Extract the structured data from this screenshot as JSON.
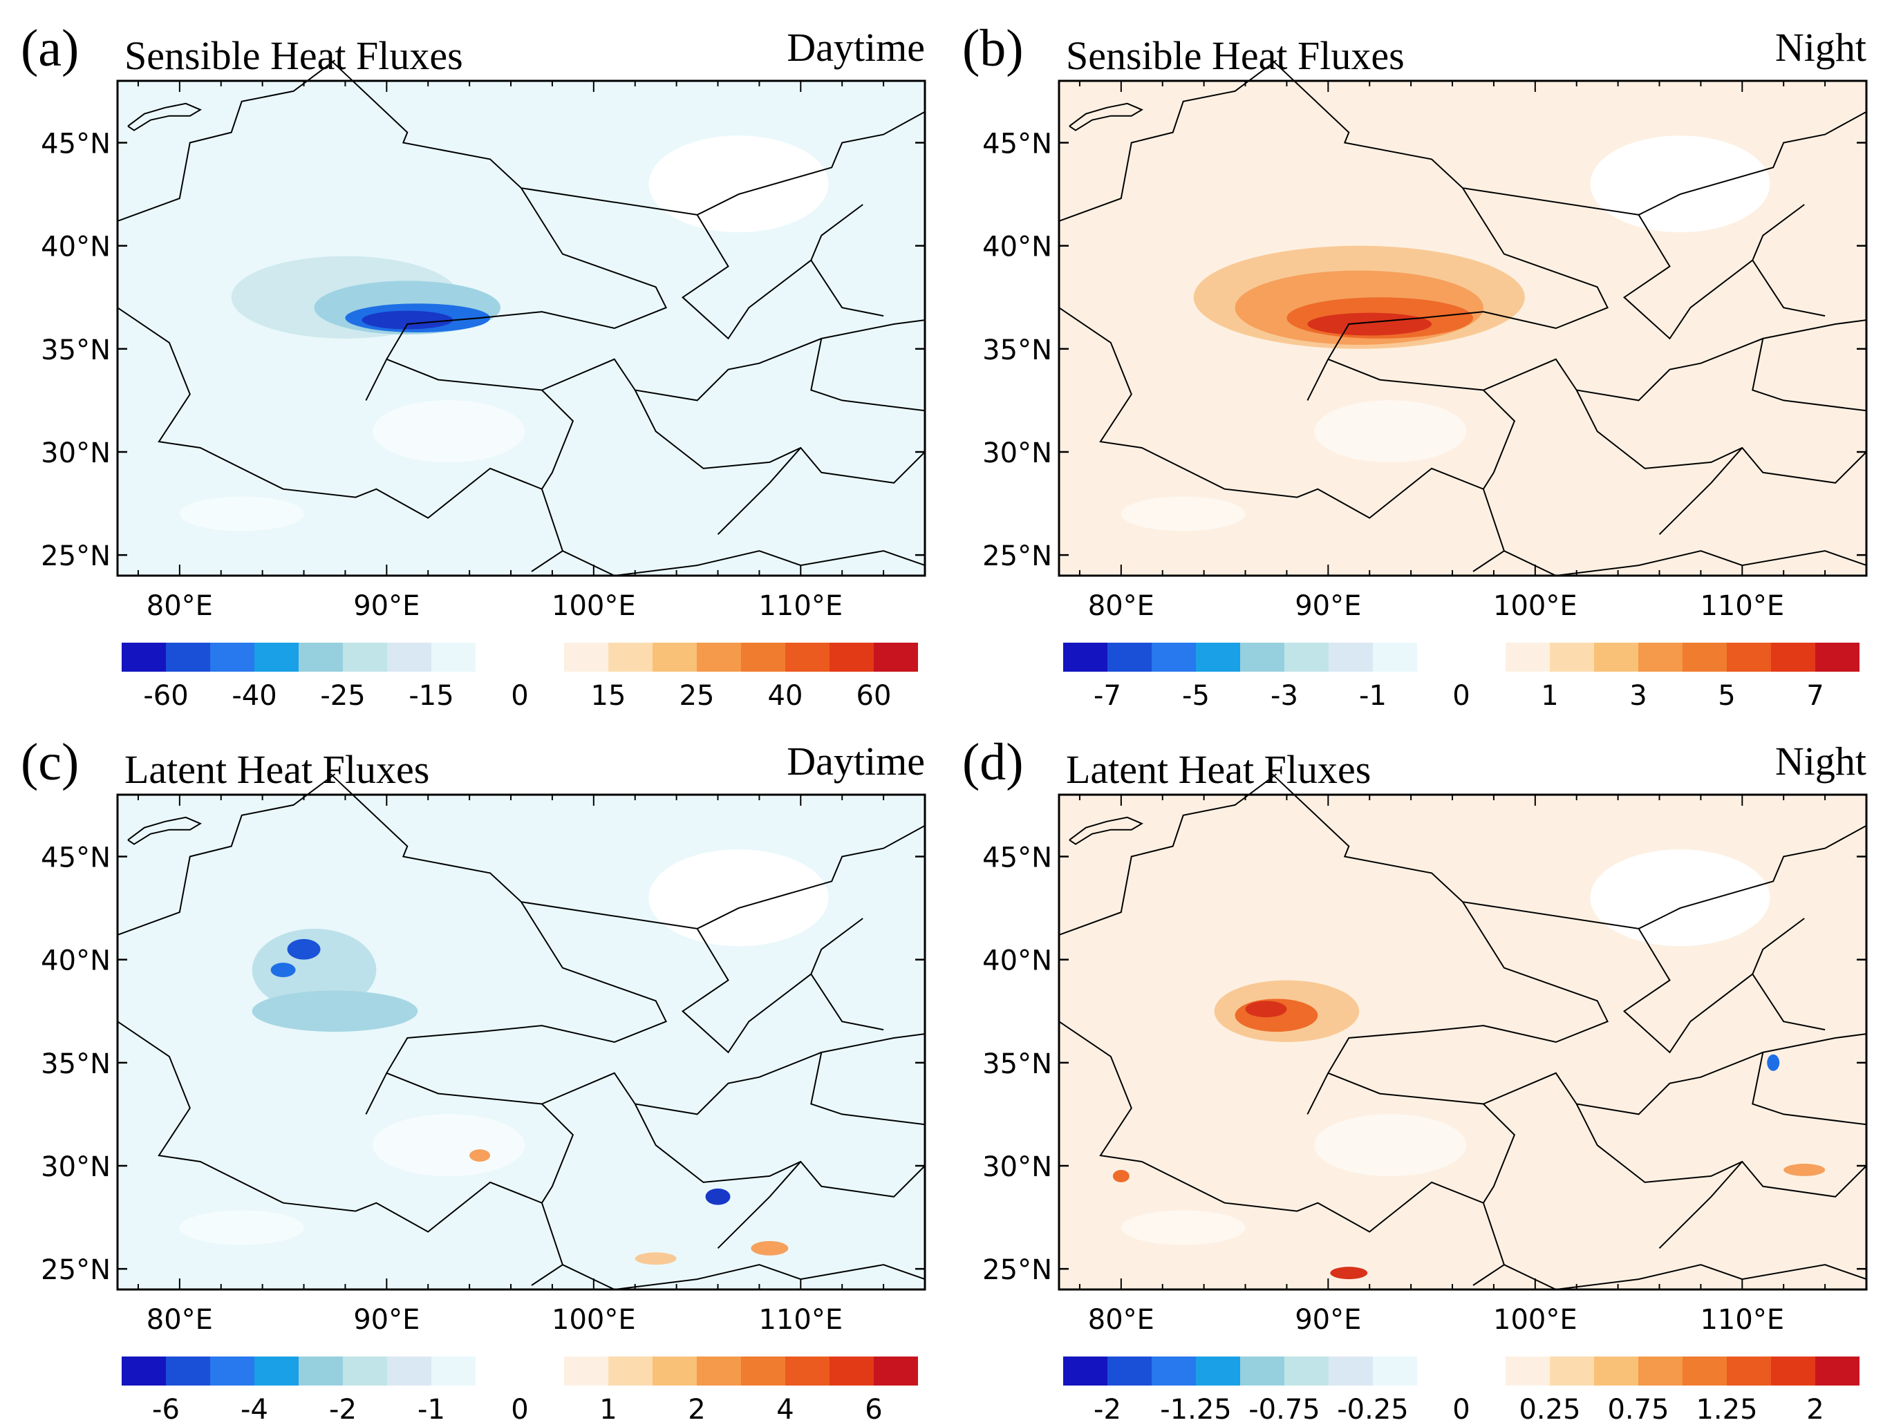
{
  "panels": [
    {
      "id": "a",
      "letter": "(a)",
      "title": "Sensible Heat Fluxes",
      "period": "Daytime",
      "variable": "sensible",
      "base": "#eaf8fb",
      "lat_labels": [
        "45°N",
        "40°N",
        "35°N",
        "30°N",
        "25°N"
      ],
      "lon_labels": [
        "80°E",
        "90°E",
        "100°E",
        "110°E"
      ],
      "colorbar_labels": [
        "-60",
        "-40",
        "-25",
        "-15",
        "0",
        "15",
        "25",
        "40",
        "60"
      ],
      "anomalies": [
        {
          "lon": 88.0,
          "lat": 37.5,
          "rx": 5.5,
          "ry": 2.0,
          "color": "#cfe9ee"
        },
        {
          "lon": 91.0,
          "lat": 37.0,
          "rx": 4.5,
          "ry": 1.3,
          "color": "#9fd3e3"
        },
        {
          "lon": 91.5,
          "lat": 36.5,
          "rx": 3.5,
          "ry": 0.7,
          "color": "#1e6fe6"
        },
        {
          "lon": 91.0,
          "lat": 36.4,
          "rx": 2.2,
          "ry": 0.45,
          "color": "#1838c8"
        }
      ]
    },
    {
      "id": "b",
      "letter": "(b)",
      "title": "Sensible Heat Fluxes",
      "period": "Night",
      "variable": "sensible",
      "base": "#fdf0e2",
      "lat_labels": [
        "45°N",
        "40°N",
        "35°N",
        "30°N",
        "25°N"
      ],
      "lon_labels": [
        "80°E",
        "90°E",
        "100°E",
        "110°E"
      ],
      "colorbar_labels": [
        "-7",
        "-5",
        "-3",
        "-1",
        "0",
        "1",
        "3",
        "5",
        "7"
      ],
      "anomalies": [
        {
          "lon": 91.5,
          "lat": 37.5,
          "rx": 8.0,
          "ry": 2.5,
          "color": "#f9c995"
        },
        {
          "lon": 91.5,
          "lat": 37.0,
          "rx": 6.0,
          "ry": 1.8,
          "color": "#f6a05c"
        },
        {
          "lon": 92.5,
          "lat": 36.5,
          "rx": 4.5,
          "ry": 1.0,
          "color": "#ee6b2a"
        },
        {
          "lon": 92.0,
          "lat": 36.2,
          "rx": 3.0,
          "ry": 0.55,
          "color": "#d8321a"
        }
      ]
    },
    {
      "id": "c",
      "letter": "(c)",
      "title": "Latent Heat Fluxes",
      "period": "Daytime",
      "variable": "latent",
      "base": "#eaf8fb",
      "lat_labels": [
        "45°N",
        "40°N",
        "35°N",
        "30°N",
        "25°N"
      ],
      "lon_labels": [
        "80°E",
        "90°E",
        "100°E",
        "110°E"
      ],
      "colorbar_labels": [
        "-6",
        "-4",
        "-2",
        "-1",
        "0",
        "1",
        "2",
        "4",
        "6"
      ],
      "anomalies": [
        {
          "lon": 86.5,
          "lat": 39.5,
          "rx": 3.0,
          "ry": 2.0,
          "color": "#bde1ea"
        },
        {
          "lon": 87.5,
          "lat": 37.5,
          "rx": 4.0,
          "ry": 1.0,
          "color": "#a6d6e4"
        },
        {
          "lon": 86.0,
          "lat": 40.5,
          "rx": 0.8,
          "ry": 0.5,
          "color": "#1a52d8"
        },
        {
          "lon": 85.0,
          "lat": 39.5,
          "rx": 0.6,
          "ry": 0.35,
          "color": "#1e6fe6"
        },
        {
          "lon": 106.0,
          "lat": 28.5,
          "rx": 0.6,
          "ry": 0.4,
          "color": "#1838c8"
        },
        {
          "lon": 94.5,
          "lat": 30.5,
          "rx": 0.5,
          "ry": 0.3,
          "color": "#f6a05c"
        },
        {
          "lon": 108.5,
          "lat": 26.0,
          "rx": 0.9,
          "ry": 0.35,
          "color": "#f6a05c"
        },
        {
          "lon": 103.0,
          "lat": 25.5,
          "rx": 1.0,
          "ry": 0.3,
          "color": "#f9c995"
        }
      ]
    },
    {
      "id": "d",
      "letter": "(d)",
      "title": "Latent Heat Fluxes",
      "period": "Night",
      "variable": "latent",
      "base": "#fdf0e2",
      "lat_labels": [
        "45°N",
        "40°N",
        "35°N",
        "30°N",
        "25°N"
      ],
      "lon_labels": [
        "80°E",
        "90°E",
        "100°E",
        "110°E"
      ],
      "colorbar_labels": [
        "-2",
        "-1.25",
        "-0.75",
        "-0.25",
        "0",
        "0.25",
        "0.75",
        "1.25",
        "2"
      ],
      "anomalies": [
        {
          "lon": 88.0,
          "lat": 37.5,
          "rx": 3.5,
          "ry": 1.5,
          "color": "#f9c995"
        },
        {
          "lon": 87.5,
          "lat": 37.3,
          "rx": 2.0,
          "ry": 0.8,
          "color": "#ee6b2a"
        },
        {
          "lon": 87.0,
          "lat": 37.6,
          "rx": 1.0,
          "ry": 0.4,
          "color": "#d8321a"
        },
        {
          "lon": 91.0,
          "lat": 24.8,
          "rx": 0.9,
          "ry": 0.3,
          "color": "#d8321a"
        },
        {
          "lon": 80.0,
          "lat": 29.5,
          "rx": 0.4,
          "ry": 0.3,
          "color": "#ee6b2a"
        },
        {
          "lon": 113.0,
          "lat": 29.8,
          "rx": 1.0,
          "ry": 0.3,
          "color": "#f6a05c"
        },
        {
          "lon": 111.5,
          "lat": 35.0,
          "rx": 0.3,
          "ry": 0.4,
          "color": "#1e6fe6"
        }
      ]
    }
  ],
  "colormap": {
    "negative": [
      "#1414c0",
      "#1a4fd8",
      "#2878ee",
      "#19a0e6",
      "#96d0de",
      "#c0e4e8",
      "#dae8f4",
      "#eaf8fb"
    ],
    "positive": [
      "#fdf0e2",
      "#fcdcaf",
      "#f9c177",
      "#f5994a",
      "#f07c2f",
      "#eb5a1e",
      "#e23a16",
      "#c8141e"
    ]
  },
  "map": {
    "lon_min": 77,
    "lon_max": 116,
    "lat_min": 24,
    "lat_max": 48,
    "land_color": "#ffffff",
    "border_color": "#000000"
  }
}
